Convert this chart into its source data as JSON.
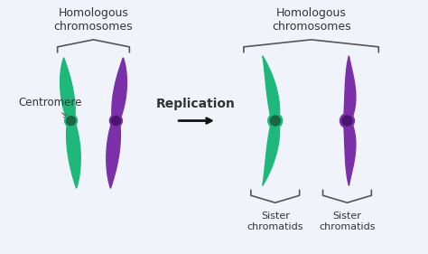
{
  "bg_color": "#f0f4fa",
  "green": "#1db87a",
  "purple": "#7b2fa8",
  "centromere_green": "#1db87a",
  "centromere_purple": "#7b2fa8",
  "text_color": "#333333",
  "arrow_color": "#111111",
  "title_left": "Homologous\nchromosomes",
  "title_right": "Homologous\nchromosomes",
  "label_centromere": "Centromere",
  "label_replication": "Replication",
  "label_sister1": "Sister\nchromatids",
  "label_sister2": "Sister\nchromatids",
  "font_size_title": 9,
  "font_size_label": 8.5,
  "font_size_arrow_label": 10
}
